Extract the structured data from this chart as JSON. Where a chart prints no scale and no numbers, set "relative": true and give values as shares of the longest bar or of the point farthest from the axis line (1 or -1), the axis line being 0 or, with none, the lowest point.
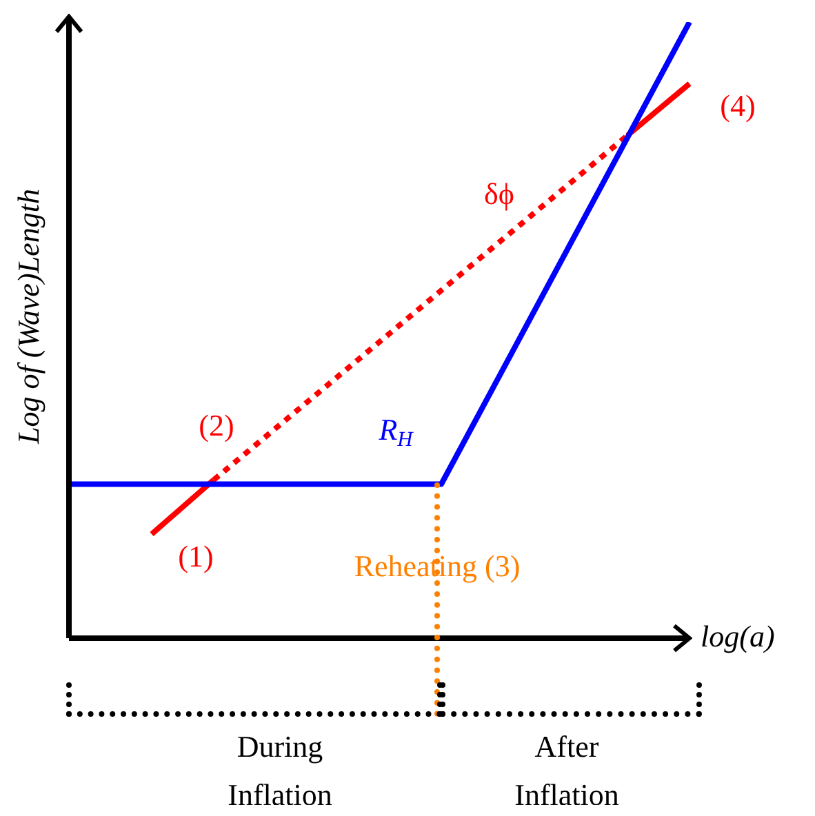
{
  "chart_data": {
    "type": "line",
    "relative": true,
    "xlabel": "log(a)",
    "ylabel": "Log of (Wave)Length",
    "categories": [
      null,
      null,
      null,
      null,
      null,
      null,
      null,
      null,
      null,
      null,
      null,
      null,
      null,
      null,
      null,
      null,
      null,
      null,
      null,
      null,
      null,
      null,
      null,
      null,
      null,
      null,
      null,
      null,
      null,
      null,
      null,
      null,
      null
    ],
    "series": [
      {
        "color": "#0000ff",
        "line_style": "solid",
        "values": [
          0.25,
          null,
          null,
          null,
          null,
          null,
          null,
          null,
          null,
          null,
          null,
          null,
          null,
          null,
          null,
          null,
          null,
          null,
          0.25,
          null,
          null,
          null,
          null,
          null,
          null,
          null,
          null,
          null,
          null,
          null,
          1,
          null,
          null
        ]
      },
      {
        "color": "#ff0000",
        "line_style": "solid",
        "values": [
          null,
          null,
          null,
          null,
          0.169,
          null,
          null,
          0.257,
          null,
          null,
          null,
          null,
          null,
          null,
          null,
          null,
          null,
          null,
          null,
          null,
          null,
          null,
          null,
          null,
          null,
          null,
          null,
          null,
          null,
          null,
          null,
          null,
          null
        ]
      },
      {
        "color": "#ff0000",
        "line_style": "dotted",
        "values": [
          null,
          null,
          null,
          null,
          null,
          null,
          null,
          0.257,
          null,
          null,
          null,
          null,
          null,
          null,
          null,
          null,
          null,
          null,
          null,
          null,
          null,
          null,
          null,
          null,
          null,
          null,
          null,
          0.816,
          null,
          null,
          null,
          null,
          null
        ]
      },
      {
        "color": "#ff0000",
        "line_style": "solid",
        "values": [
          null,
          null,
          null,
          null,
          null,
          null,
          null,
          null,
          null,
          null,
          null,
          null,
          null,
          null,
          null,
          null,
          null,
          null,
          null,
          null,
          null,
          null,
          null,
          null,
          null,
          null,
          null,
          0.816,
          null,
          null,
          0.9,
          null,
          null
        ]
      }
    ],
    "annotations": [
      "(1)",
      "(2)",
      "R$_{H}$",
      "δϕ",
      "(4)",
      "Reheating (3)",
      "During Inflation",
      "After Inflation"
    ]
  }
}
